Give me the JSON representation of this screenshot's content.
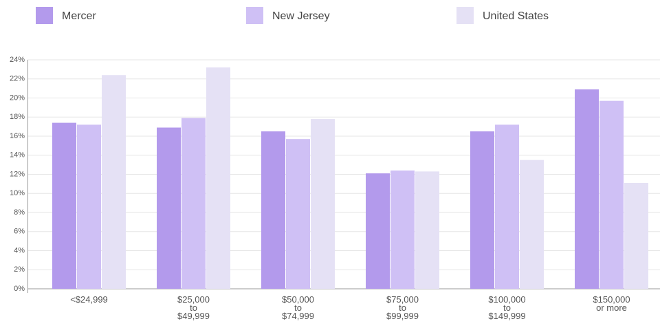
{
  "chart_data": {
    "type": "bar",
    "categories": [
      "<$24,999",
      "$25,000\nto\n$49,999",
      "$50,000\nto\n$74,999",
      "$75,000\nto\n$99,999",
      "$100,000\nto\n$149,999",
      "$150,000\nor more"
    ],
    "series": [
      {
        "name": "Mercer",
        "color": "#b39aec",
        "values": [
          17.4,
          16.9,
          16.5,
          12.1,
          16.5,
          20.9
        ]
      },
      {
        "name": "New Jersey",
        "color": "#cfc0f5",
        "values": [
          17.2,
          17.9,
          15.7,
          12.4,
          17.2,
          19.7
        ]
      },
      {
        "name": "United States",
        "color": "#e5e1f5",
        "values": [
          22.4,
          23.2,
          17.8,
          12.3,
          13.5,
          11.1
        ]
      }
    ],
    "ylim": [
      0,
      24
    ],
    "yticks": [
      {
        "value": 0,
        "label": "0%"
      },
      {
        "value": 2,
        "label": "2%"
      },
      {
        "value": 4,
        "label": "4%"
      },
      {
        "value": 6,
        "label": "6%"
      },
      {
        "value": 8,
        "label": "8%"
      },
      {
        "value": 10,
        "label": "10%"
      },
      {
        "value": 12,
        "label": "12%"
      },
      {
        "value": 14,
        "label": "14%"
      },
      {
        "value": 16,
        "label": "16%"
      },
      {
        "value": 18,
        "label": "18%"
      },
      {
        "value": 20,
        "label": "20%"
      },
      {
        "value": 22,
        "label": "22%"
      },
      {
        "value": 24,
        "label": "24%"
      }
    ],
    "grid": true,
    "legend": "top"
  }
}
